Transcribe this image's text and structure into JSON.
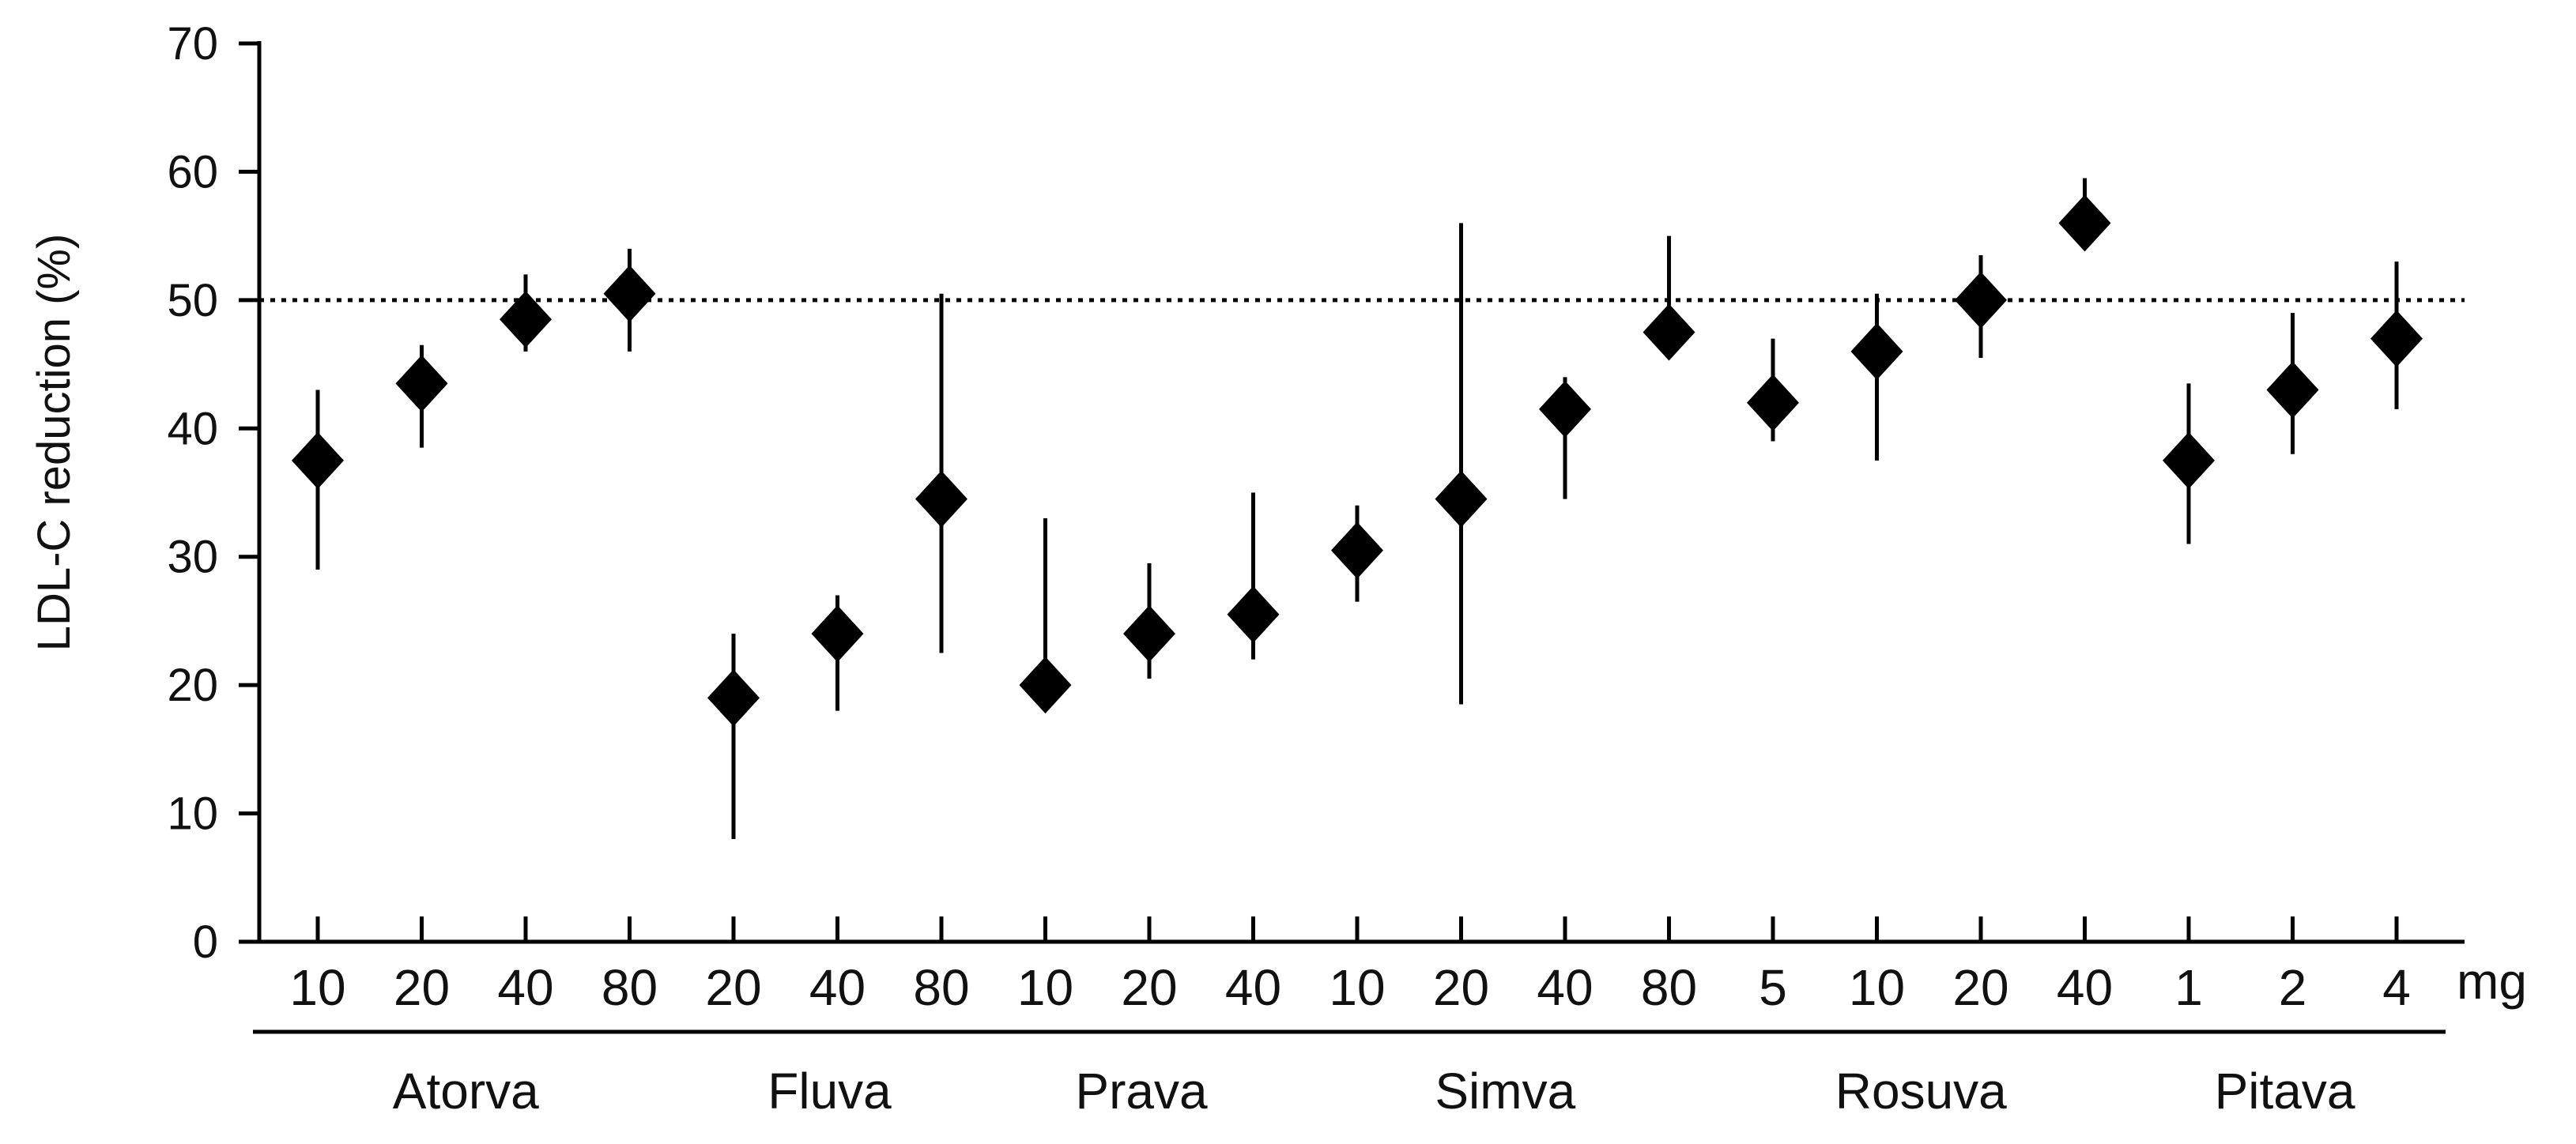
{
  "chart_data": {
    "type": "scatter",
    "ylabel": "LDL-C reduction (%)",
    "unit_label": "mg",
    "ylim": [
      0,
      70
    ],
    "yticks": [
      0,
      10,
      20,
      30,
      40,
      50,
      60,
      70
    ],
    "reference_line": 50,
    "grid": false,
    "groups": [
      {
        "name": "Atorva",
        "points": [
          {
            "dose": "10",
            "value": 37.5,
            "low": 29,
            "high": 43
          },
          {
            "dose": "20",
            "value": 43.5,
            "low": 38.5,
            "high": 46.5
          },
          {
            "dose": "40",
            "value": 48.5,
            "low": 46,
            "high": 52
          },
          {
            "dose": "80",
            "value": 50.5,
            "low": 46,
            "high": 54
          }
        ]
      },
      {
        "name": "Fluva",
        "points": [
          {
            "dose": "20",
            "value": 19,
            "low": 8,
            "high": 24
          },
          {
            "dose": "40",
            "value": 24,
            "low": 18,
            "high": 27
          },
          {
            "dose": "80",
            "value": 34.5,
            "low": 22.5,
            "high": 50.5
          }
        ]
      },
      {
        "name": "Prava",
        "points": [
          {
            "dose": "10",
            "value": 20,
            "low": 18,
            "high": 33
          },
          {
            "dose": "20",
            "value": 24,
            "low": 20.5,
            "high": 29.5
          },
          {
            "dose": "40",
            "value": 25.5,
            "low": 22,
            "high": 35
          }
        ]
      },
      {
        "name": "Simva",
        "points": [
          {
            "dose": "10",
            "value": 30.5,
            "low": 26.5,
            "high": 34
          },
          {
            "dose": "20",
            "value": 34.5,
            "low": 18.5,
            "high": 56
          },
          {
            "dose": "40",
            "value": 41.5,
            "low": 34.5,
            "high": 44
          },
          {
            "dose": "80",
            "value": 47.5,
            "low": 46,
            "high": 55
          }
        ]
      },
      {
        "name": "Rosuva",
        "points": [
          {
            "dose": "5",
            "value": 42,
            "low": 39,
            "high": 47
          },
          {
            "dose": "10",
            "value": 46,
            "low": 37.5,
            "high": 50.5
          },
          {
            "dose": "20",
            "value": 50,
            "low": 45.5,
            "high": 53.5
          },
          {
            "dose": "40",
            "value": 56,
            "low": 54,
            "high": 59.5
          }
        ]
      },
      {
        "name": "Pitava",
        "points": [
          {
            "dose": "1",
            "value": 37.5,
            "low": 31,
            "high": 43.5
          },
          {
            "dose": "2",
            "value": 43,
            "low": 38,
            "high": 49
          },
          {
            "dose": "4",
            "value": 47,
            "low": 41.5,
            "high": 53
          }
        ]
      }
    ]
  }
}
